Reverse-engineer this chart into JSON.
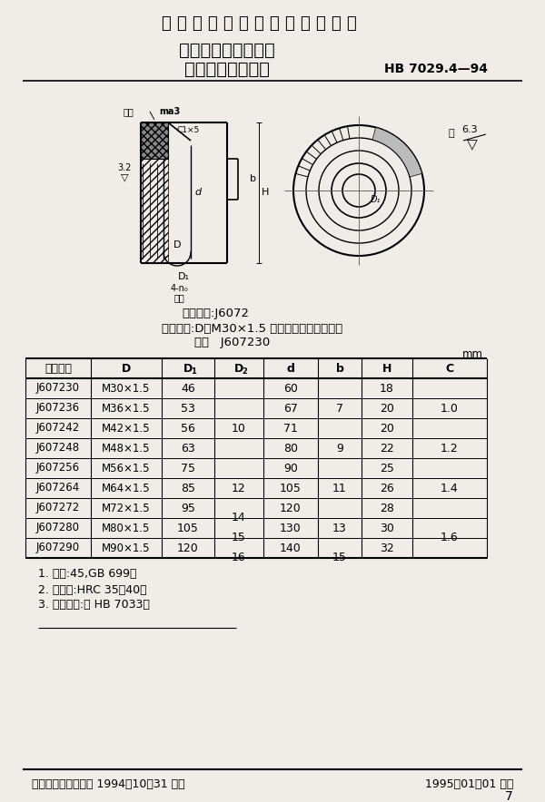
{
  "title_main": "中 华 人 民 共 和 国 航 空 工 业 标 准",
  "title_sub1": "夹具通用元件紧固件",
  "title_sub2": "带推拉槽滚花螺母",
  "std_code": "HB 7029.4—94",
  "classify_code": "分类代号:J6072",
  "mark_example": "标记示例:D＝M30×1.5 的带推拉槽滚花螺母：",
  "mark_example2": "螺母   J607230",
  "unit": "mm",
  "table_headers": [
    "标记代号",
    "D",
    "D1",
    "D2",
    "d",
    "b",
    "H",
    "C"
  ],
  "table_h_subs": [
    "",
    "",
    "1",
    "2",
    "",
    "",
    "",
    ""
  ],
  "table_data_simple": [
    [
      "J607230",
      "M30×1.5",
      "46",
      "60",
      "18"
    ],
    [
      "J607236",
      "M36×1.5",
      "53",
      "67",
      ""
    ],
    [
      "J607242",
      "M42×1.5",
      "56",
      "71",
      "20"
    ],
    [
      "J607248",
      "M48×1.5",
      "63",
      "80",
      "22"
    ],
    [
      "J607256",
      "M56×1.5",
      "75",
      "90",
      "25"
    ],
    [
      "J607264",
      "M64×1.5",
      "85",
      "105",
      "26"
    ],
    [
      "J607272",
      "M72×1.5",
      "95",
      "120",
      "28"
    ],
    [
      "J607280",
      "M80×1.5",
      "105",
      "130",
      "30"
    ],
    [
      "J607290",
      "M90×1.5",
      "120",
      "140",
      "32"
    ]
  ],
  "D2_merges": [
    [
      0,
      4,
      "10"
    ],
    [
      4,
      6,
      "12"
    ],
    [
      6,
      7,
      "14"
    ],
    [
      7,
      8,
      "15"
    ],
    [
      8,
      9,
      "16"
    ]
  ],
  "b_merges": [
    [
      0,
      2,
      "7"
    ],
    [
      2,
      4,
      "9"
    ],
    [
      4,
      6,
      "11"
    ],
    [
      6,
      8,
      "13"
    ],
    [
      8,
      9,
      "15"
    ]
  ],
  "C_merges": [
    [
      0,
      2,
      "1.0"
    ],
    [
      2,
      4,
      "1.2"
    ],
    [
      4,
      6,
      "1.4"
    ],
    [
      6,
      9,
      "1.6"
    ]
  ],
  "notes": [
    "1. 材料:45,GB 699。",
    "2. 热处理:HRC 35～40。",
    "3. 技术条件:按 HB 7033。"
  ],
  "footer_left": "中国航空工业总公司 1994－10－31 发布",
  "footer_right": "1995－01－01 实施",
  "page_number": "7",
  "bg_color": "#f0ede8"
}
